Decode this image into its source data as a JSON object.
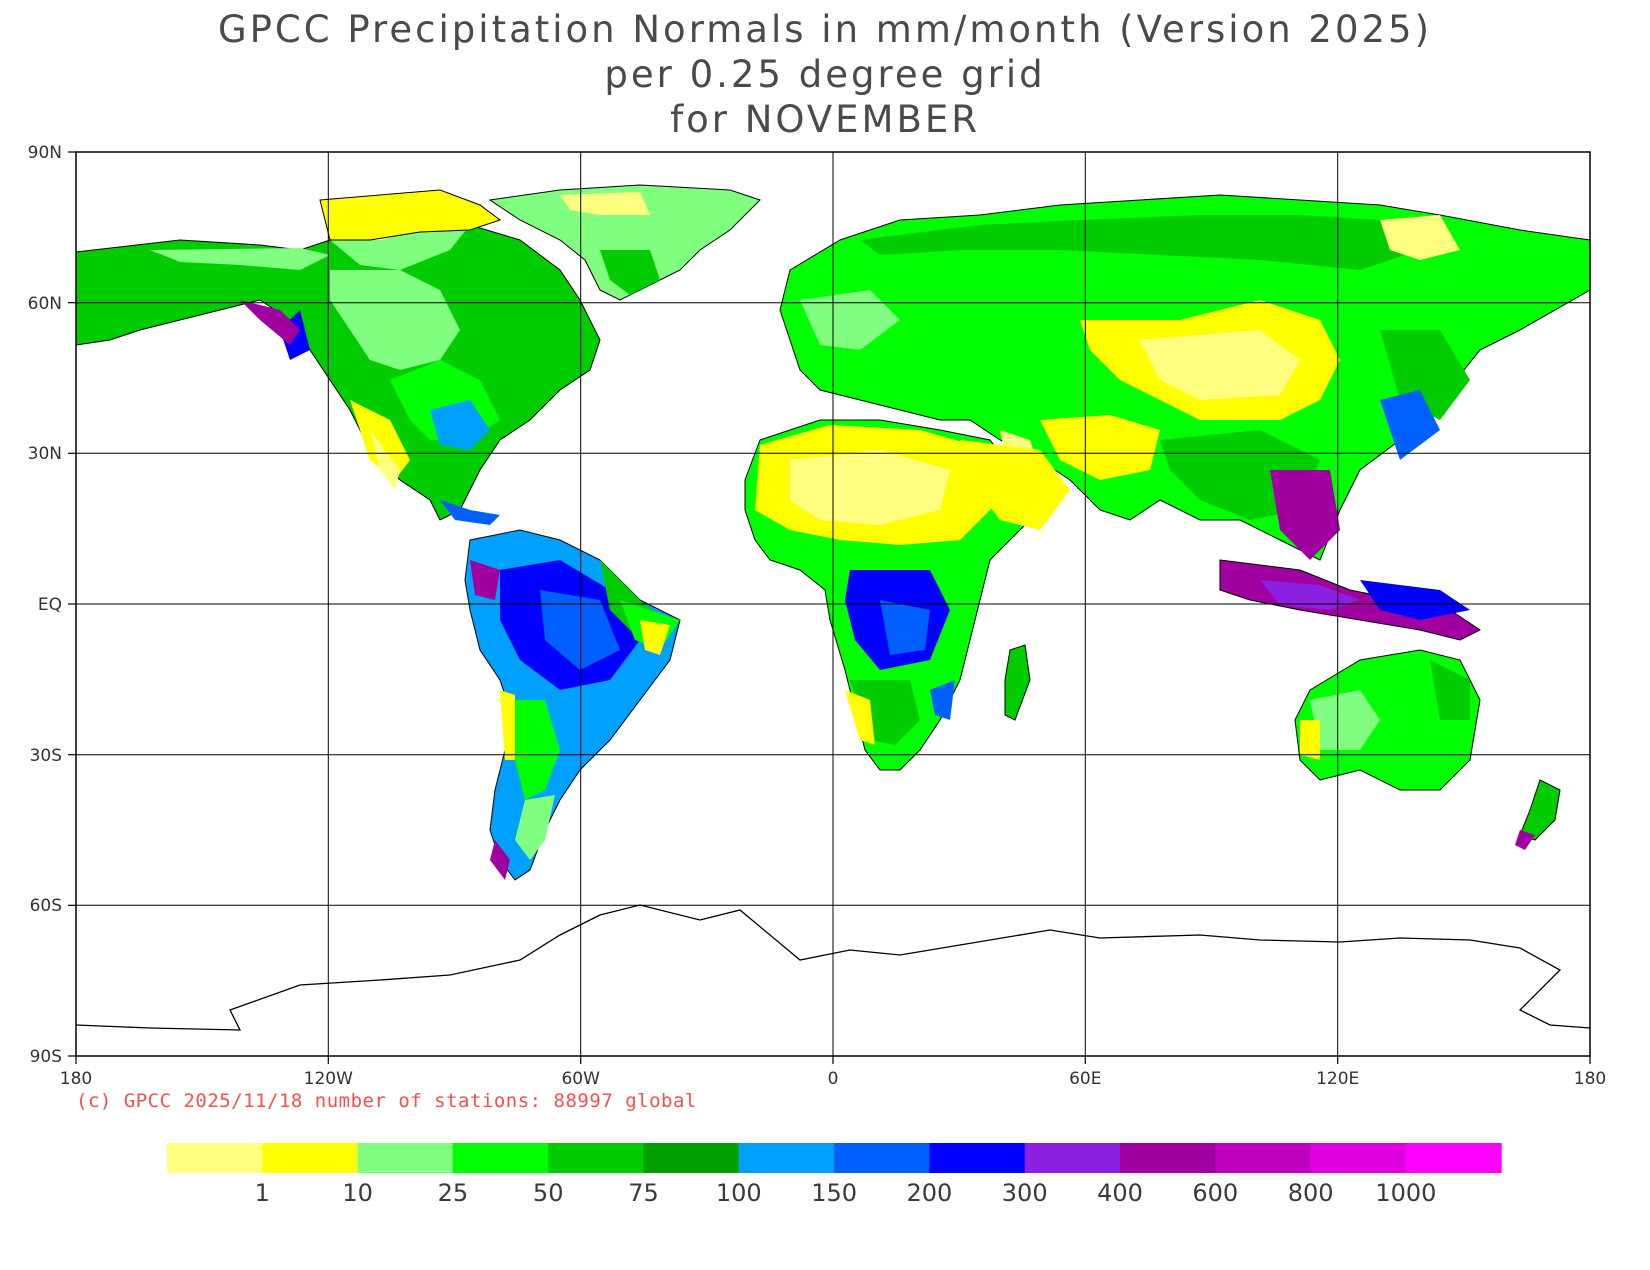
{
  "title": {
    "line1": "GPCC Precipitation Normals in mm/month (Version 2025)",
    "line2": "per 0.25 degree grid",
    "line3": "for NOVEMBER"
  },
  "axes": {
    "lat_labels": [
      "90N",
      "60N",
      "30N",
      "EQ",
      "30S",
      "60S",
      "90S"
    ],
    "lon_labels": [
      "180",
      "120W",
      "60W",
      "0",
      "60E",
      "120E",
      "180"
    ]
  },
  "credit": "(c) GPCC 2025/11/18 number of stations: 88997 global",
  "colorbar": {
    "colors": [
      "#ffff80",
      "#ffff00",
      "#80ff80",
      "#00ff00",
      "#00cc00",
      "#00a000",
      "#00a0ff",
      "#0060ff",
      "#0000ff",
      "#8c20e0",
      "#a000a0",
      "#c000c0",
      "#e000e0",
      "#ff00ff"
    ],
    "labels": [
      "1",
      "10",
      "25",
      "50",
      "75",
      "100",
      "150",
      "200",
      "300",
      "400",
      "600",
      "800",
      "1000"
    ]
  },
  "map_colors": {
    "land_outline": "#000000",
    "grid_line": "#000000",
    "ocean": "#ffffff"
  }
}
